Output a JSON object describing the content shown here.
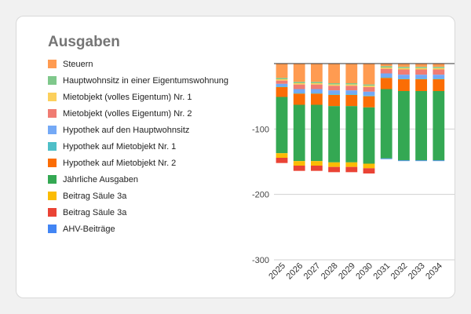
{
  "chart_data": {
    "type": "bar",
    "stacked": true,
    "title": "Ausgaben",
    "xlabel": "",
    "ylabel": "",
    "ylim": [
      -300,
      0
    ],
    "yticks": [
      -100,
      -200,
      -300
    ],
    "grid": true,
    "legend_position": "left",
    "categories": [
      "2025",
      "2026",
      "2027",
      "2028",
      "2029",
      "2030",
      "2031",
      "2032",
      "2033",
      "2034"
    ],
    "series": [
      {
        "name": "Steuern",
        "color": "#ff9b51",
        "values": [
          -22,
          -28,
          -28,
          -30,
          -30,
          -32,
          -4,
          -5,
          -5,
          -5
        ]
      },
      {
        "name": "Hauptwohnsitz in einer Eigentumswohnung",
        "color": "#7fc88b",
        "values": [
          -2,
          -2,
          -2,
          -2,
          -2,
          -2,
          -2,
          -2,
          -2,
          -2
        ]
      },
      {
        "name": "Mietobjekt (volles Eigentum) Nr. 1",
        "color": "#fcd05c",
        "values": [
          -2,
          -2,
          -2,
          -2,
          -2,
          -2,
          -2,
          -2,
          -2,
          -2
        ]
      },
      {
        "name": "Mietobjekt (volles Eigentum) Nr. 2",
        "color": "#f07c73",
        "values": [
          -5,
          -7,
          -7,
          -7,
          -7,
          -7,
          -7,
          -8,
          -8,
          -8
        ]
      },
      {
        "name": "Hypothek auf den Hauptwohnsitz",
        "color": "#74a9f6",
        "values": [
          -4,
          -6,
          -6,
          -6,
          -6,
          -6,
          -6,
          -6,
          -6,
          -6
        ]
      },
      {
        "name": "Hypothek auf Mietobjekt Nr. 1",
        "color": "#4fbfc8",
        "values": [
          -1,
          -1,
          -1,
          -1,
          -1,
          -1,
          -1,
          -1,
          -1,
          -1
        ]
      },
      {
        "name": "Hypothek auf Mietobjekt Nr. 2",
        "color": "#fb6d05",
        "values": [
          -15,
          -17,
          -17,
          -17,
          -17,
          -17,
          -17,
          -18,
          -18,
          -18
        ]
      },
      {
        "name": "Jährliche Ausgaben",
        "color": "#34a853",
        "values": [
          -86,
          -86,
          -86,
          -86,
          -86,
          -86,
          -106,
          -106,
          -106,
          -106
        ]
      },
      {
        "name": "Beitrag Säule 3a",
        "color": "#fbbc04",
        "values": [
          -7,
          -7,
          -7,
          -7,
          -7,
          -7,
          0,
          0,
          0,
          0
        ]
      },
      {
        "name": "Beitrag Säule 3a",
        "color": "#ea4335",
        "values": [
          -8,
          -8,
          -8,
          -8,
          -8,
          -8,
          0,
          0,
          0,
          0
        ]
      },
      {
        "name": "AHV-Beiträge",
        "color": "#4285f4",
        "values": [
          0,
          0,
          0,
          0,
          0,
          0,
          -1,
          -1,
          -1,
          -1
        ]
      }
    ]
  }
}
